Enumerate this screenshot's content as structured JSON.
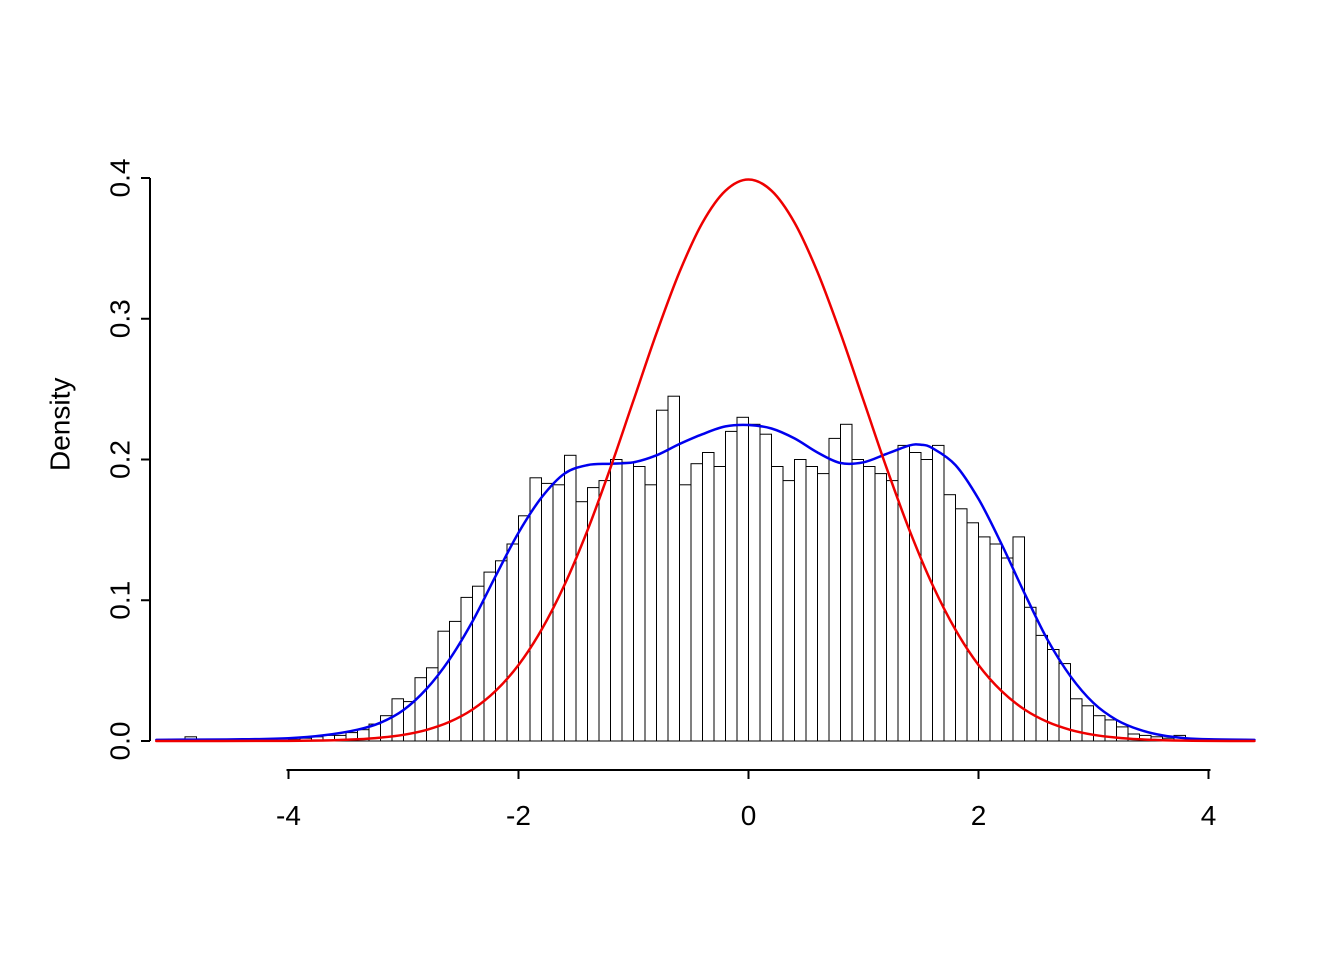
{
  "figure": {
    "background": "#ffffff",
    "axis_color": "#000000"
  },
  "chart_data": {
    "type": "bar",
    "subtype": "histogram-with-density-curves",
    "title": "",
    "xlabel": "",
    "ylabel": "Density",
    "xlim": [
      -5.2,
      4.5
    ],
    "ylim": [
      0,
      0.4
    ],
    "x_ticks": [
      -4,
      -2,
      0,
      2,
      4
    ],
    "x_tick_labels": [
      "-4",
      "-2",
      "0",
      "2",
      "4"
    ],
    "y_ticks": [
      0,
      0.1,
      0.2,
      0.3,
      0.4
    ],
    "y_tick_labels": [
      "0.0",
      "0.1",
      "0.2",
      "0.3",
      "0.4"
    ],
    "grid": "off",
    "legend": "none",
    "bin_width": 0.1,
    "bar_fill": "#ffffff",
    "bar_stroke": "#000000",
    "bins": [
      [
        -4.9,
        0.003
      ],
      [
        -4.8,
        0.001
      ],
      [
        -4.1,
        0.002
      ],
      [
        -4.0,
        0.001
      ],
      [
        -3.9,
        0.002
      ],
      [
        -3.8,
        0.003
      ],
      [
        -3.7,
        0.004
      ],
      [
        -3.6,
        0.004
      ],
      [
        -3.5,
        0.006
      ],
      [
        -3.4,
        0.008
      ],
      [
        -3.3,
        0.012
      ],
      [
        -3.2,
        0.018
      ],
      [
        -3.1,
        0.03
      ],
      [
        -3.0,
        0.028
      ],
      [
        -2.9,
        0.045
      ],
      [
        -2.8,
        0.052
      ],
      [
        -2.7,
        0.078
      ],
      [
        -2.6,
        0.085
      ],
      [
        -2.5,
        0.102
      ],
      [
        -2.4,
        0.11
      ],
      [
        -2.3,
        0.12
      ],
      [
        -2.2,
        0.128
      ],
      [
        -2.1,
        0.14
      ],
      [
        -2.0,
        0.16
      ],
      [
        -1.9,
        0.187
      ],
      [
        -1.8,
        0.183
      ],
      [
        -1.7,
        0.182
      ],
      [
        -1.6,
        0.203
      ],
      [
        -1.5,
        0.17
      ],
      [
        -1.4,
        0.18
      ],
      [
        -1.3,
        0.185
      ],
      [
        -1.2,
        0.2
      ],
      [
        -1.1,
        0.198
      ],
      [
        -1.0,
        0.195
      ],
      [
        -0.9,
        0.182
      ],
      [
        -0.8,
        0.235
      ],
      [
        -0.7,
        0.245
      ],
      [
        -0.6,
        0.182
      ],
      [
        -0.5,
        0.197
      ],
      [
        -0.4,
        0.205
      ],
      [
        -0.3,
        0.195
      ],
      [
        -0.2,
        0.22
      ],
      [
        -0.1,
        0.23
      ],
      [
        0.0,
        0.225
      ],
      [
        0.1,
        0.218
      ],
      [
        0.2,
        0.195
      ],
      [
        0.3,
        0.185
      ],
      [
        0.4,
        0.2
      ],
      [
        0.5,
        0.195
      ],
      [
        0.6,
        0.19
      ],
      [
        0.7,
        0.215
      ],
      [
        0.8,
        0.225
      ],
      [
        0.9,
        0.2
      ],
      [
        1.0,
        0.195
      ],
      [
        1.1,
        0.19
      ],
      [
        1.2,
        0.185
      ],
      [
        1.3,
        0.21
      ],
      [
        1.4,
        0.205
      ],
      [
        1.5,
        0.2
      ],
      [
        1.6,
        0.21
      ],
      [
        1.7,
        0.175
      ],
      [
        1.8,
        0.165
      ],
      [
        1.9,
        0.155
      ],
      [
        2.0,
        0.145
      ],
      [
        2.1,
        0.14
      ],
      [
        2.2,
        0.13
      ],
      [
        2.3,
        0.145
      ],
      [
        2.4,
        0.095
      ],
      [
        2.5,
        0.075
      ],
      [
        2.6,
        0.065
      ],
      [
        2.7,
        0.055
      ],
      [
        2.8,
        0.03
      ],
      [
        2.9,
        0.025
      ],
      [
        3.0,
        0.018
      ],
      [
        3.1,
        0.015
      ],
      [
        3.2,
        0.01
      ],
      [
        3.3,
        0.005
      ],
      [
        3.4,
        0.004
      ],
      [
        3.5,
        0.003
      ],
      [
        3.6,
        0.002
      ],
      [
        3.7,
        0.004
      ]
    ],
    "curves": [
      {
        "name": "kernel-density-curve",
        "color": "#0000ee",
        "width": 2.5,
        "points": [
          [
            -5.15,
            0.0008
          ],
          [
            -4.8,
            0.001
          ],
          [
            -4.4,
            0.0012
          ],
          [
            -4.0,
            0.002
          ],
          [
            -3.7,
            0.004
          ],
          [
            -3.4,
            0.008
          ],
          [
            -3.2,
            0.013
          ],
          [
            -3.0,
            0.022
          ],
          [
            -2.8,
            0.037
          ],
          [
            -2.6,
            0.058
          ],
          [
            -2.4,
            0.085
          ],
          [
            -2.2,
            0.117
          ],
          [
            -2.0,
            0.148
          ],
          [
            -1.8,
            0.173
          ],
          [
            -1.6,
            0.19
          ],
          [
            -1.4,
            0.196
          ],
          [
            -1.2,
            0.197
          ],
          [
            -1.0,
            0.198
          ],
          [
            -0.8,
            0.203
          ],
          [
            -0.6,
            0.211
          ],
          [
            -0.4,
            0.218
          ],
          [
            -0.2,
            0.2235
          ],
          [
            0.0,
            0.2245
          ],
          [
            0.2,
            0.222
          ],
          [
            0.4,
            0.215
          ],
          [
            0.6,
            0.205
          ],
          [
            0.8,
            0.1975
          ],
          [
            1.0,
            0.198
          ],
          [
            1.2,
            0.204
          ],
          [
            1.4,
            0.21
          ],
          [
            1.5,
            0.2105
          ],
          [
            1.6,
            0.208
          ],
          [
            1.8,
            0.196
          ],
          [
            2.0,
            0.172
          ],
          [
            2.2,
            0.14
          ],
          [
            2.4,
            0.105
          ],
          [
            2.6,
            0.072
          ],
          [
            2.8,
            0.046
          ],
          [
            3.0,
            0.027
          ],
          [
            3.2,
            0.015
          ],
          [
            3.4,
            0.008
          ],
          [
            3.6,
            0.004
          ],
          [
            3.8,
            0.002
          ],
          [
            4.0,
            0.0012
          ],
          [
            4.4,
            0.0008
          ]
        ]
      },
      {
        "name": "normal-density-curve",
        "color": "#ee0000",
        "width": 2.5,
        "points": [
          [
            -5.15,
            0.0
          ],
          [
            -4.6,
            0.0
          ],
          [
            -4.2,
            0.0001
          ],
          [
            -4.0,
            0.0001
          ],
          [
            -3.8,
            0.0003
          ],
          [
            -3.6,
            0.0006
          ],
          [
            -3.4,
            0.0012
          ],
          [
            -3.2,
            0.0024
          ],
          [
            -3.0,
            0.0044
          ],
          [
            -2.8,
            0.0079
          ],
          [
            -2.6,
            0.0136
          ],
          [
            -2.4,
            0.0224
          ],
          [
            -2.2,
            0.0355
          ],
          [
            -2.0,
            0.054
          ],
          [
            -1.8,
            0.079
          ],
          [
            -1.6,
            0.1109
          ],
          [
            -1.4,
            0.1497
          ],
          [
            -1.2,
            0.1942
          ],
          [
            -1.0,
            0.242
          ],
          [
            -0.8,
            0.2897
          ],
          [
            -0.6,
            0.3332
          ],
          [
            -0.4,
            0.3683
          ],
          [
            -0.2,
            0.391
          ],
          [
            0.0,
            0.3989
          ],
          [
            0.2,
            0.391
          ],
          [
            0.4,
            0.3683
          ],
          [
            0.6,
            0.3332
          ],
          [
            0.8,
            0.2897
          ],
          [
            1.0,
            0.242
          ],
          [
            1.2,
            0.1942
          ],
          [
            1.4,
            0.1497
          ],
          [
            1.6,
            0.1109
          ],
          [
            1.8,
            0.079
          ],
          [
            2.0,
            0.054
          ],
          [
            2.2,
            0.0355
          ],
          [
            2.4,
            0.0224
          ],
          [
            2.6,
            0.0136
          ],
          [
            2.8,
            0.0079
          ],
          [
            3.0,
            0.0044
          ],
          [
            3.2,
            0.0024
          ],
          [
            3.4,
            0.0012
          ],
          [
            3.6,
            0.0006
          ],
          [
            3.8,
            0.0003
          ],
          [
            4.0,
            0.0001
          ],
          [
            4.4,
            0.0
          ]
        ]
      }
    ]
  }
}
